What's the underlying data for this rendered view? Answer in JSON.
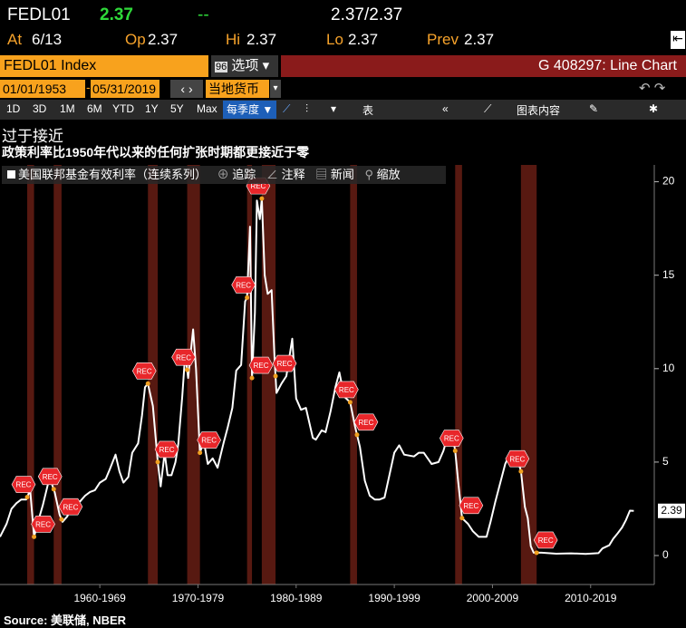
{
  "header": {
    "ticker": "FEDL01",
    "last": "2.37",
    "change": "--",
    "bid_ask": "2.37/2.37",
    "at_label": "At",
    "at_value": "6/13",
    "op_label": "Op",
    "op_value": "2.37",
    "hi_label": "Hi",
    "hi_value": "2.37",
    "lo_label": "Lo",
    "lo_value": "2.37",
    "prev_label": "Prev",
    "prev_value": "2.37"
  },
  "toolbar": {
    "security": "FEDL01 Index",
    "options_num": "96",
    "options": "选项",
    "chart_id": "G 408297: Line Chart",
    "start_date": "01/01/1953",
    "end_date": "05/31/2019",
    "currency": "当地货币",
    "periods": [
      "1D",
      "3D",
      "1M",
      "6M",
      "YTD",
      "1Y",
      "5Y",
      "Max"
    ],
    "frequency": "每季度 ▼",
    "table": "表",
    "chart_content": "图表内容"
  },
  "chart_data": {
    "type": "line",
    "title": "过于接近",
    "subtitle": "政策利率比1950年代以来的任何扩张时期都更接近于零",
    "source": "Source: 美联储, NBER",
    "legend_tools": [
      "追踪",
      "注释",
      "新闻",
      "缩放"
    ],
    "annotation_label": "REC",
    "xlim": [
      1954.83,
      2021.3
    ],
    "ylim": [
      -1.55,
      20.9
    ],
    "yticks": [
      0,
      5,
      10,
      15,
      20
    ],
    "xticks": [
      {
        "value": 1965,
        "label": "1960-1969"
      },
      {
        "value": 1975,
        "label": "1970-1979"
      },
      {
        "value": 1985,
        "label": "1980-1989"
      },
      {
        "value": 1995,
        "label": "1990-1999"
      },
      {
        "value": 2005,
        "label": "2000-2009"
      },
      {
        "value": 2015,
        "label": "2010-2019"
      }
    ],
    "recession_color": "#5c1a12",
    "recessions": [
      {
        "start": 1957.6,
        "end": 1958.3
      },
      {
        "start": 1960.3,
        "end": 1961.1
      },
      {
        "start": 1969.9,
        "end": 1970.9
      },
      {
        "start": 1973.9,
        "end": 1975.2
      },
      {
        "start": 1980.0,
        "end": 1980.5
      },
      {
        "start": 1981.5,
        "end": 1982.9
      },
      {
        "start": 1990.5,
        "end": 1991.2
      },
      {
        "start": 2001.2,
        "end": 2001.9
      },
      {
        "start": 2007.9,
        "end": 2009.5
      }
    ],
    "x": [
      1954.83,
      1955.5,
      1956.0,
      1956.5,
      1957.0,
      1957.5,
      1957.9,
      1958.3,
      1958.7,
      1959.2,
      1959.7,
      1960.0,
      1960.4,
      1960.9,
      1961.2,
      1961.7,
      1962.0,
      1962.5,
      1963.0,
      1963.5,
      1964.0,
      1964.5,
      1965.0,
      1965.6,
      1966.0,
      1966.6,
      1967.0,
      1967.4,
      1967.9,
      1968.3,
      1968.9,
      1969.3,
      1969.6,
      1969.9,
      1970.4,
      1970.9,
      1971.2,
      1971.6,
      1971.9,
      1972.3,
      1972.7,
      1973.0,
      1973.4,
      1973.7,
      1974.0,
      1974.5,
      1974.8,
      1975.2,
      1975.6,
      1976.0,
      1976.5,
      1977.0,
      1977.6,
      1978.0,
      1978.5,
      1978.9,
      1979.4,
      1979.8,
      1980.0,
      1980.3,
      1980.5,
      1980.8,
      1981.0,
      1981.3,
      1981.5,
      1981.8,
      1982.1,
      1982.5,
      1982.8,
      1983.0,
      1983.5,
      1984.0,
      1984.6,
      1985.0,
      1985.5,
      1986.0,
      1986.7,
      1987.0,
      1987.6,
      1988.0,
      1988.5,
      1989.0,
      1989.4,
      1989.9,
      1990.5,
      1991.0,
      1991.5,
      1992.0,
      1992.5,
      1993.0,
      1993.5,
      1994.0,
      1994.5,
      1995.0,
      1995.5,
      1996.0,
      1997.0,
      1997.5,
      1998.0,
      1998.8,
      1999.5,
      2000.0,
      2000.5,
      2000.9,
      2001.2,
      2001.5,
      2001.9,
      2002.5,
      2003.0,
      2003.6,
      2004.4,
      2004.8,
      2005.3,
      2005.8,
      2006.3,
      2006.6,
      2007.5,
      2007.9,
      2008.3,
      2008.6,
      2008.9,
      2009.2,
      2010.0,
      2011.5,
      2013.0,
      2014.5,
      2015.8,
      2016.2,
      2016.9,
      2017.3,
      2017.7,
      2018.2,
      2018.6,
      2019.0,
      2019.4
    ],
    "series": [
      {
        "name": "美国联邦基金有效利率（连续系列）",
        "color": "#ffffff",
        "values": [
          1.0,
          1.7,
          2.5,
          2.8,
          3.0,
          3.0,
          3.5,
          1.0,
          1.8,
          2.7,
          3.8,
          4.0,
          3.4,
          2.2,
          1.8,
          2.1,
          2.6,
          2.8,
          2.9,
          3.2,
          3.4,
          3.5,
          3.9,
          4.1,
          4.6,
          5.4,
          4.5,
          3.9,
          4.2,
          5.5,
          6.0,
          7.5,
          9.0,
          9.2,
          8.0,
          5.0,
          3.7,
          5.5,
          4.3,
          4.3,
          5.0,
          6.0,
          8.5,
          10.8,
          9.5,
          12.1,
          10.0,
          5.5,
          6.1,
          4.9,
          5.2,
          4.7,
          6.0,
          6.8,
          7.9,
          9.9,
          10.2,
          13.6,
          13.8,
          17.6,
          9.5,
          13.0,
          19.0,
          18.0,
          19.1,
          15.0,
          14.0,
          14.2,
          10.5,
          8.7,
          9.2,
          9.6,
          11.6,
          8.4,
          7.8,
          7.9,
          6.3,
          6.2,
          6.7,
          6.6,
          7.7,
          9.0,
          9.8,
          8.5,
          8.2,
          6.9,
          5.8,
          4.0,
          3.2,
          3.0,
          3.0,
          3.1,
          4.3,
          5.5,
          5.9,
          5.4,
          5.3,
          5.5,
          5.5,
          4.9,
          5.0,
          5.6,
          6.5,
          6.5,
          5.6,
          4.0,
          2.0,
          1.7,
          1.3,
          1.0,
          1.0,
          1.8,
          2.9,
          3.9,
          4.9,
          5.25,
          5.25,
          4.5,
          2.6,
          2.0,
          0.5,
          0.15,
          0.15,
          0.1,
          0.12,
          0.09,
          0.13,
          0.38,
          0.55,
          0.9,
          1.15,
          1.5,
          1.9,
          2.4,
          2.39
        ]
      }
    ],
    "last_value": 2.39
  }
}
